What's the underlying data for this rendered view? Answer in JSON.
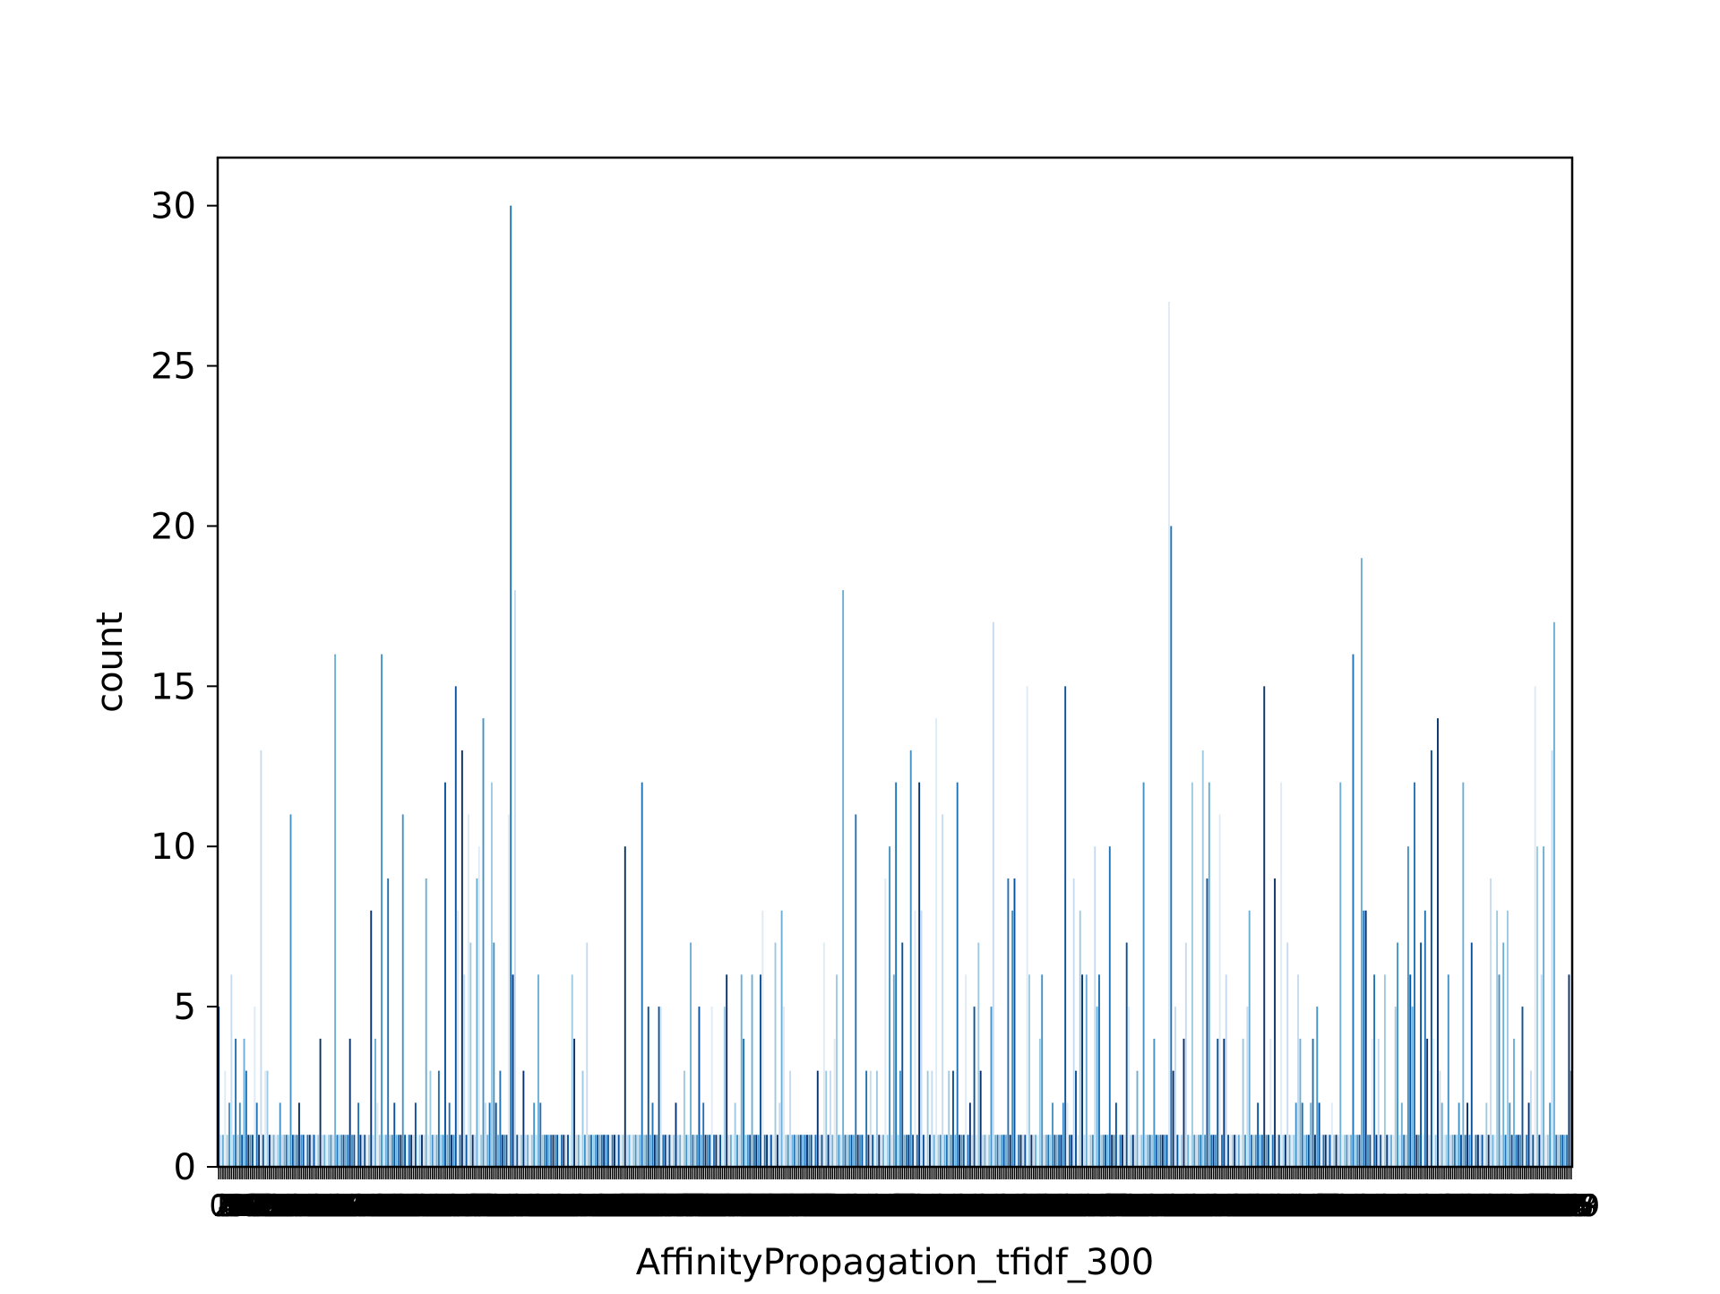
{
  "chart_data": {
    "type": "bar",
    "title": "",
    "xlabel": "AffinityPropagation_tfidf_300",
    "ylabel": "count",
    "ylim": [
      0,
      31.5
    ],
    "yticks": [
      0,
      5,
      10,
      15,
      20,
      25,
      30
    ],
    "grid": false,
    "legend": "none",
    "bar_colors": [
      "#08306b",
      "#08519c",
      "#2171b5",
      "#4292c6",
      "#6baed6",
      "#9ecae1",
      "#c6dbef",
      "#deebf7"
    ],
    "category_count": 600,
    "values": [
      5,
      1,
      1,
      3,
      1,
      2,
      6,
      1,
      4,
      1,
      2,
      1,
      4,
      3,
      1,
      1,
      1,
      5,
      2,
      1,
      13,
      1,
      3,
      3,
      1,
      1,
      1,
      1,
      1,
      2,
      1,
      1,
      1,
      1,
      11,
      1,
      1,
      1,
      2,
      1,
      1,
      1,
      1,
      1,
      1,
      1,
      1,
      1,
      4,
      1,
      1,
      1,
      1,
      1,
      1,
      16,
      1,
      1,
      1,
      1,
      1,
      1,
      4,
      1,
      1,
      1,
      2,
      1,
      1,
      1,
      1,
      1,
      8,
      1,
      4,
      2,
      1,
      16,
      1,
      1,
      9,
      1,
      1,
      2,
      1,
      1,
      1,
      11,
      1,
      1,
      1,
      1,
      1,
      2,
      1,
      1,
      1,
      1,
      9,
      1,
      3,
      1,
      1,
      1,
      3,
      1,
      1,
      12,
      1,
      2,
      1,
      1,
      15,
      8,
      1,
      13,
      6,
      1,
      11,
      7,
      1,
      1,
      9,
      10,
      1,
      14,
      2,
      1,
      2,
      12,
      7,
      2,
      1,
      3,
      1,
      1,
      1,
      11,
      30,
      6,
      18,
      1,
      1,
      1,
      3,
      1,
      1,
      1,
      1,
      2,
      1,
      6,
      2,
      1,
      1,
      1,
      1,
      1,
      1,
      1,
      1,
      1,
      1,
      1,
      1,
      1,
      1,
      6,
      4,
      1,
      1,
      1,
      3,
      1,
      7,
      1,
      1,
      1,
      1,
      1,
      1,
      1,
      1,
      1,
      1,
      1,
      1,
      1,
      1,
      1,
      1,
      1,
      10,
      1,
      1,
      1,
      1,
      1,
      1,
      1,
      12,
      1,
      1,
      5,
      1,
      2,
      1,
      1,
      5,
      5,
      1,
      1,
      1,
      1,
      1,
      1,
      2,
      1,
      1,
      1,
      3,
      1,
      1,
      7,
      1,
      1,
      1,
      5,
      1,
      2,
      1,
      1,
      1,
      5,
      1,
      1,
      1,
      1,
      1,
      5,
      6,
      1,
      1,
      1,
      2,
      1,
      1,
      6,
      4,
      1,
      1,
      1,
      6,
      1,
      1,
      1,
      6,
      8,
      1,
      1,
      1,
      1,
      1,
      7,
      1,
      2,
      8,
      5,
      1,
      1,
      3,
      1,
      1,
      1,
      1,
      1,
      1,
      1,
      1,
      1,
      1,
      1,
      1,
      3,
      1,
      1,
      7,
      3,
      1,
      3,
      1,
      4,
      6,
      1,
      1,
      18,
      1,
      1,
      1,
      1,
      1,
      11,
      1,
      1,
      1,
      1,
      3,
      1,
      3,
      1,
      1,
      3,
      1,
      1,
      1,
      9,
      1,
      10,
      1,
      6,
      12,
      1,
      3,
      7,
      1,
      1,
      1,
      13,
      1,
      8,
      1,
      12,
      8,
      1,
      1,
      3,
      1,
      3,
      1,
      14,
      1,
      1,
      11,
      1,
      1,
      3,
      1,
      3,
      1,
      12,
      1,
      1,
      1,
      6,
      1,
      2,
      1,
      5,
      1,
      7,
      3,
      1,
      1,
      1,
      1,
      5,
      17,
      1,
      1,
      1,
      1,
      1,
      1,
      9,
      1,
      8,
      9,
      1,
      1,
      1,
      1,
      1,
      15,
      6,
      1,
      1,
      1,
      1,
      4,
      6,
      1,
      1,
      1,
      1,
      2,
      1,
      1,
      1,
      1,
      2,
      15,
      2,
      1,
      1,
      9,
      3,
      1,
      8,
      6,
      1,
      6,
      1,
      1,
      1,
      10,
      5,
      6,
      1,
      1,
      1,
      1,
      10,
      1,
      1,
      2,
      1,
      1,
      1,
      1,
      7,
      5,
      1,
      1,
      1,
      3,
      1,
      1,
      12,
      1,
      1,
      1,
      1,
      4,
      1,
      1,
      1,
      1,
      1,
      1,
      27,
      20,
      3,
      5,
      1,
      1,
      1,
      4,
      7,
      1,
      1,
      12,
      1,
      1,
      1,
      1,
      13,
      1,
      9,
      12,
      1,
      1,
      1,
      4,
      11,
      1,
      4,
      6,
      1,
      1,
      1,
      1,
      1,
      1,
      1,
      4,
      1,
      5,
      8,
      1,
      1,
      1,
      2,
      1,
      1,
      15,
      1,
      1,
      4,
      1,
      9,
      1,
      1,
      12,
      1,
      1,
      7,
      1,
      1,
      1,
      2,
      6,
      4,
      2,
      1,
      1,
      1,
      2,
      4,
      1,
      5,
      2,
      1,
      1,
      1,
      1,
      1,
      2,
      1,
      1,
      1,
      12,
      1,
      1,
      1,
      1,
      1,
      16,
      1,
      1,
      1,
      19,
      8,
      8,
      1,
      1,
      4,
      6,
      1,
      4,
      1,
      1,
      6,
      1,
      1,
      1,
      1,
      5,
      7,
      1,
      2,
      1,
      1,
      10,
      6,
      5,
      12,
      1,
      1,
      7,
      1,
      8,
      4,
      1,
      13,
      4,
      1,
      14,
      3,
      2,
      1,
      1,
      6,
      1,
      1,
      1,
      1,
      2,
      1,
      12,
      1,
      2,
      1,
      7,
      1,
      1,
      1,
      1,
      1,
      1,
      2,
      1,
      9,
      1,
      1,
      8,
      6,
      1,
      7,
      1,
      8,
      2,
      1,
      4,
      1,
      1,
      1,
      5,
      1,
      1,
      2,
      3,
      1,
      15,
      10,
      1,
      6,
      10,
      1,
      1,
      2,
      13,
      17,
      1,
      1,
      1,
      1,
      1,
      1,
      6,
      3
    ]
  }
}
